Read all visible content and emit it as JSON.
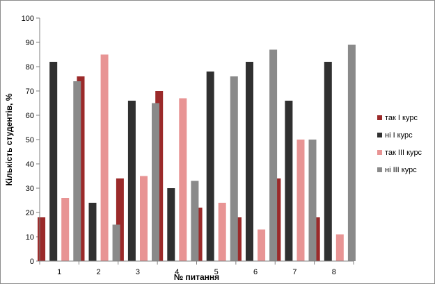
{
  "chart_data": {
    "type": "bar",
    "title": "",
    "xlabel": "№ питання",
    "ylabel": "Кількість студентів, %",
    "ylim": [
      0,
      100
    ],
    "yticks": [
      0,
      10,
      20,
      30,
      40,
      50,
      60,
      70,
      80,
      90,
      100
    ],
    "categories": [
      "1",
      "2",
      "3",
      "4",
      "5",
      "6",
      "7",
      "8"
    ],
    "grid": false,
    "legend_position": "right",
    "series": [
      {
        "name": "так І курс",
        "color": "#9b2a2a",
        "values": [
          18,
          76,
          34,
          70,
          22,
          18,
          34,
          18
        ]
      },
      {
        "name": "ні І курс",
        "color": "#303030",
        "values": [
          82,
          24,
          66,
          30,
          78,
          82,
          66,
          82
        ]
      },
      {
        "name": "так ІІІ курс",
        "color": "#e89494",
        "values": [
          26,
          85,
          35,
          67,
          24,
          13,
          50,
          11
        ]
      },
      {
        "name": "ні ІІІ курс",
        "color": "#8a8a8a",
        "values": [
          74,
          15,
          65,
          33,
          76,
          87,
          50,
          89
        ]
      }
    ]
  }
}
